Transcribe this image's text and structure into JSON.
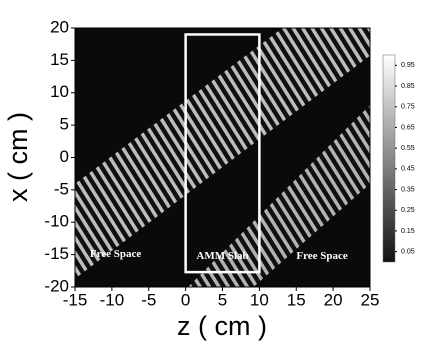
{
  "chart_data": {
    "type": "heatmap",
    "xlabel": "z ( cm )",
    "ylabel": "x ( cm )",
    "xlim": [
      -15,
      25
    ],
    "xticks": [
      -15,
      -10,
      -5,
      0,
      5,
      10,
      15,
      20,
      25
    ],
    "ylim": [
      -20,
      20
    ],
    "yticks": [
      -20,
      -15,
      -10,
      -5,
      0,
      5,
      10,
      15,
      20
    ],
    "clim": [
      0,
      1
    ],
    "cticks": [
      0.05,
      0.15,
      0.25,
      0.35,
      0.45,
      0.55,
      0.65,
      0.75,
      0.85,
      0.95
    ],
    "slab": {
      "zlim": [
        0,
        10
      ],
      "xlim": [
        -17.7,
        19
      ]
    },
    "annotations": [
      {
        "text": "Free Space",
        "z": -9.5,
        "x": -15
      },
      {
        "text": "AMM Slab",
        "z": 5,
        "x": -15.3
      },
      {
        "text": "Free Space",
        "z": 18.5,
        "x": -15.3
      }
    ]
  }
}
